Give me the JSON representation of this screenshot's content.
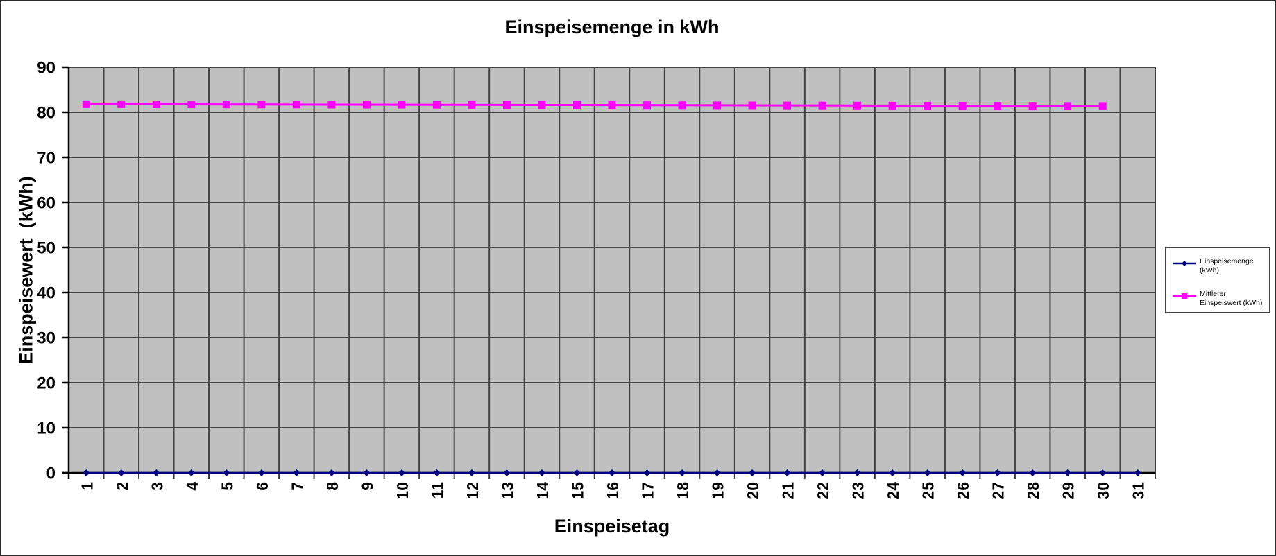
{
  "figure": {
    "background": "#FFFFFF",
    "border_color": "#2B2B2B"
  },
  "chart_data": {
    "type": "line",
    "title": "Einspeisemenge in kWh",
    "xlabel": "Einspeisetag",
    "ylabel": "Einspeisewert  (kWh)",
    "categories": [
      "1",
      "2",
      "3",
      "4",
      "5",
      "6",
      "7",
      "8",
      "9",
      "10",
      "11",
      "12",
      "13",
      "14",
      "15",
      "16",
      "17",
      "18",
      "19",
      "20",
      "21",
      "22",
      "23",
      "24",
      "25",
      "26",
      "27",
      "28",
      "29",
      "30",
      "31"
    ],
    "series": [
      {
        "name": "Einspeisemenge (kWh)",
        "color": "#000080",
        "marker": "diamond",
        "line_width": 2.5,
        "values": [
          0,
          0,
          0,
          0,
          0,
          0,
          0,
          0,
          0,
          0,
          0,
          0,
          0,
          0,
          0,
          0,
          0,
          0,
          0,
          0,
          0,
          0,
          0,
          0,
          0,
          0,
          0,
          0,
          0,
          0,
          0
        ]
      },
      {
        "name": "Mittlerer Einspeiswert (kWh)",
        "color": "#FF00FF",
        "marker": "square",
        "line_width": 3,
        "values": [
          81.8,
          81.79,
          81.77,
          81.76,
          81.74,
          81.73,
          81.72,
          81.7,
          81.69,
          81.68,
          81.66,
          81.65,
          81.63,
          81.62,
          81.61,
          81.59,
          81.58,
          81.57,
          81.55,
          81.54,
          81.52,
          81.51,
          81.5,
          81.48,
          81.47,
          81.46,
          81.44,
          81.43,
          81.41,
          81.4,
          null
        ]
      }
    ],
    "ylim": [
      0,
      90
    ],
    "ytick_step": 10,
    "grid": {
      "vertical": true,
      "horizontal": true,
      "color": "#424242"
    },
    "plot_bg": "#C0C0C0",
    "axis_color": "#000000",
    "legend_position": "right"
  },
  "legend": {
    "items": [
      {
        "label": "Einspeisemenge (kWh)",
        "color": "#000080",
        "marker": "diamond"
      },
      {
        "label": "Mittlerer Einspeiswert (kWh)",
        "color": "#FF00FF",
        "marker": "square"
      }
    ]
  }
}
